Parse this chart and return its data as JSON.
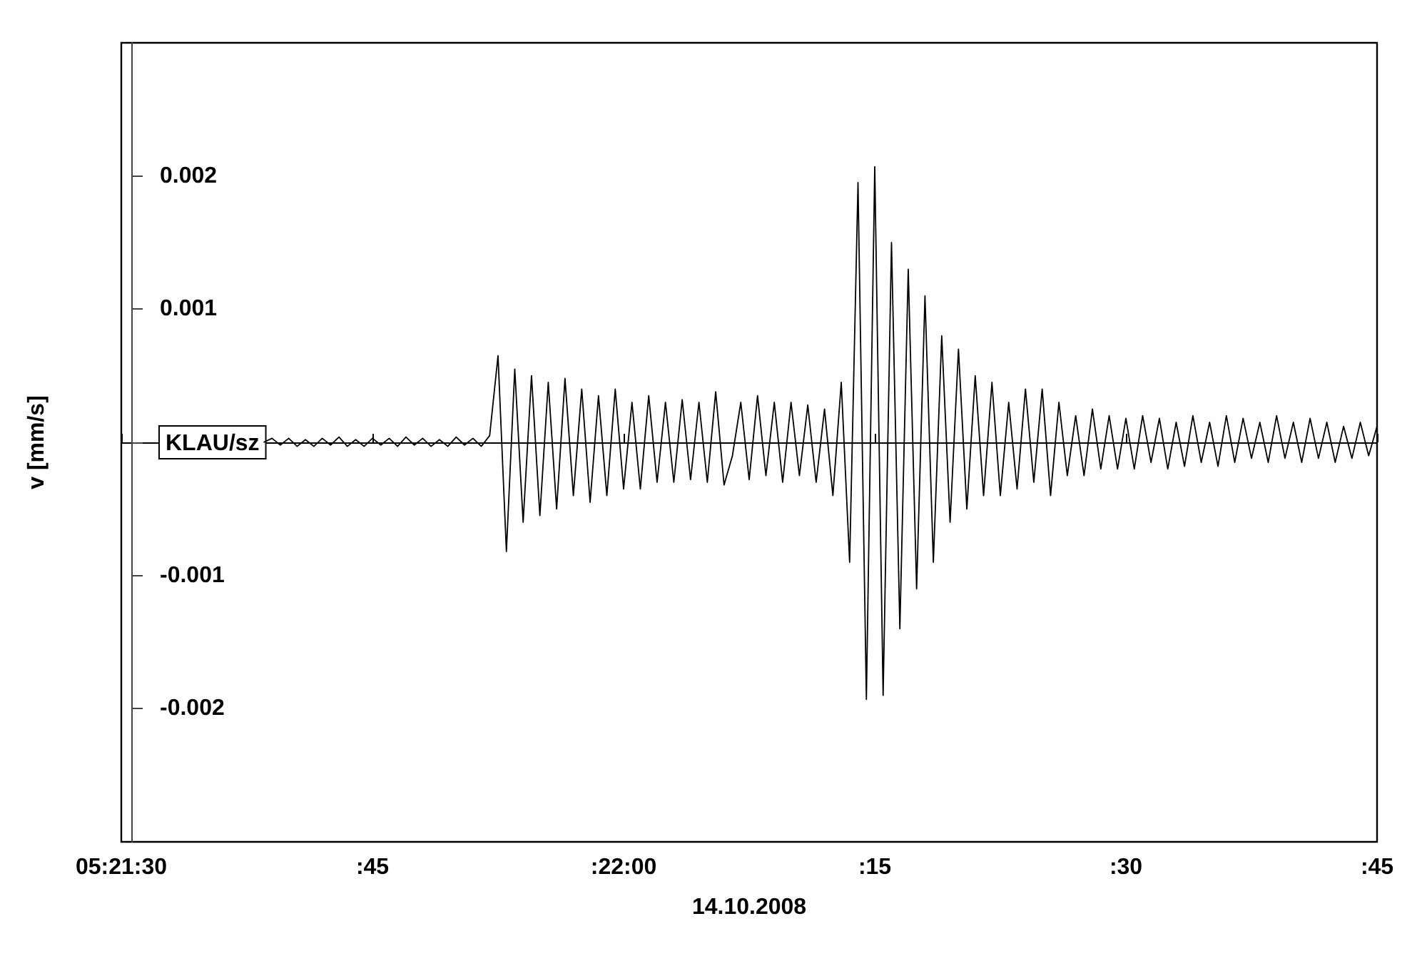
{
  "chart_data": {
    "type": "line",
    "xlabel": "14.10.2008",
    "ylabel": "v [mm/s]",
    "categories": [
      "05:21:30",
      null,
      null,
      null,
      null,
      null,
      null,
      null,
      null,
      null,
      null,
      null,
      null,
      null,
      null,
      null,
      null,
      null,
      null,
      null,
      null,
      null,
      null,
      null,
      null,
      null,
      null,
      null,
      null,
      null,
      ":45",
      null,
      null,
      null,
      null,
      null,
      null,
      null,
      null,
      null,
      null,
      null,
      null,
      null,
      null,
      null,
      null,
      null,
      null,
      null,
      null,
      null,
      null,
      null,
      null,
      null,
      null,
      null,
      null,
      null,
      ":22:00",
      null,
      null,
      null,
      null,
      null,
      null,
      null,
      null,
      null,
      null,
      null,
      null,
      null,
      null,
      null,
      null,
      null,
      null,
      null,
      null,
      null,
      null,
      null,
      null,
      null,
      null,
      null,
      null,
      null,
      ":15",
      null,
      null,
      null,
      null,
      null,
      null,
      null,
      null,
      null,
      null,
      null,
      null,
      null,
      null,
      null,
      null,
      null,
      null,
      null,
      null,
      null,
      null,
      null,
      null,
      null,
      null,
      null,
      null,
      null,
      ":30",
      null,
      null,
      null,
      null,
      null,
      null,
      null,
      null,
      null,
      null,
      null,
      null,
      null,
      null,
      null,
      null,
      null,
      null,
      null,
      null,
      null,
      null,
      null,
      null,
      null,
      null,
      null,
      null,
      null,
      ":45"
    ],
    "ylim": [
      -0.003,
      0.003
    ],
    "yticks": [
      -0.002,
      -0.001,
      {
        "value": 0,
        "label": "KLAU/sz"
      },
      0.001,
      0.002
    ],
    "series": [
      {
        "color": "#000000",
        "values": [
          null,
          null,
          null,
          null,
          null,
          null,
          null,
          null,
          null,
          null,
          null,
          null,
          null,
          null,
          null,
          null,
          null,
          0,
          3e-05,
          -2e-05,
          3e-05,
          -3e-05,
          2e-05,
          -3e-05,
          3e-05,
          -2e-05,
          4e-05,
          -3e-05,
          2e-05,
          -3e-05,
          3e-05,
          -2e-05,
          3e-05,
          -3e-05,
          4e-05,
          -2e-05,
          3e-05,
          -3e-05,
          2e-05,
          -3e-05,
          4e-05,
          -2e-05,
          3e-05,
          -3e-05,
          5e-05,
          0.00065,
          -0.00082,
          0.00055,
          -0.0006,
          0.0005,
          -0.00055,
          0.00045,
          -0.0005,
          0.00048,
          -0.0004,
          0.0004,
          -0.00045,
          0.00035,
          -0.0004,
          0.0004,
          -0.00035,
          0.0003,
          -0.00035,
          0.00035,
          -0.0003,
          0.0003,
          -0.0003,
          0.00032,
          -0.00028,
          0.0003,
          -0.0003,
          0.00038,
          -0.00032,
          -0.0001,
          0.0003,
          -0.00028,
          0.00035,
          -0.00025,
          0.0003,
          -0.0003,
          0.0003,
          -0.00025,
          0.00028,
          -0.0003,
          0.00025,
          -0.0004,
          0.00045,
          -0.0009,
          0.00195,
          -0.00193,
          0.00207,
          -0.0019,
          0.0015,
          -0.0014,
          0.0013,
          -0.0011,
          0.0011,
          -0.0009,
          0.0008,
          -0.0006,
          0.0007,
          -0.0005,
          0.0005,
          -0.0004,
          0.00045,
          -0.0004,
          0.0003,
          -0.00035,
          0.0004,
          -0.0003,
          0.0004,
          -0.0004,
          0.0003,
          -0.00025,
          0.0002,
          -0.00025,
          0.00025,
          -0.0002,
          0.0002,
          -0.0002,
          0.00018,
          -0.0002,
          0.0002,
          -0.00015,
          0.00018,
          -0.0002,
          0.00015,
          -0.00018,
          0.0002,
          -0.00015,
          0.00015,
          -0.00018,
          0.0002,
          -0.00015,
          0.00018,
          -0.00012,
          0.00015,
          -0.00015,
          0.0002,
          -0.00012,
          0.00015,
          -0.00015,
          0.00018,
          -0.00012,
          0.00015,
          -0.00015,
          0.00012,
          -0.00012,
          0.00015,
          -0.0001,
          0.00012
        ]
      }
    ]
  }
}
